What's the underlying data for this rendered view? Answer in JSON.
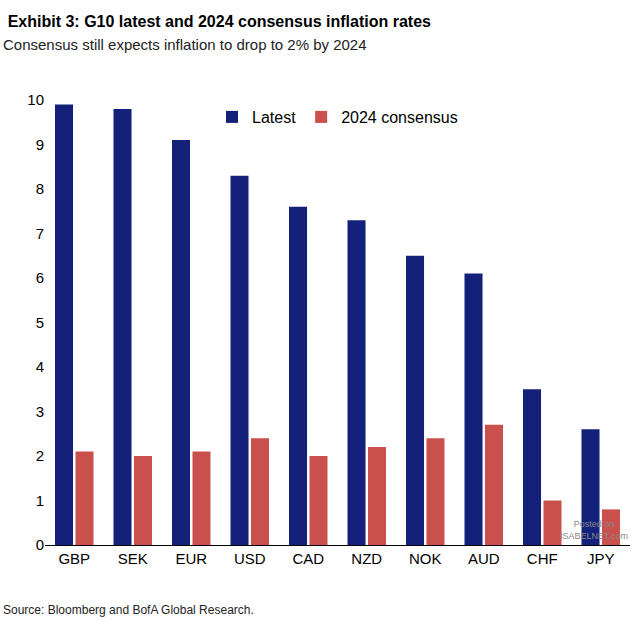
{
  "chart_data": {
    "type": "bar",
    "title": "Exhibit 3: G10 latest and 2024 consensus inflation rates",
    "subtitle": "Consensus still expects inflation to drop to 2% by 2024",
    "source": "Source: Bloomberg and BofA Global Research.",
    "annotations": [
      "Posted on",
      "ISABELNET.com"
    ],
    "categories": [
      "GBP",
      "SEK",
      "EUR",
      "USD",
      "CAD",
      "NZD",
      "NOK",
      "AUD",
      "CHF",
      "JPY"
    ],
    "series": [
      {
        "name": "Latest",
        "color": "#14217a",
        "values": [
          9.9,
          9.8,
          9.1,
          8.3,
          7.6,
          7.3,
          6.5,
          6.1,
          3.5,
          2.6
        ]
      },
      {
        "name": "2024 consensus",
        "color": "#c9504c",
        "values": [
          2.1,
          2.0,
          2.1,
          2.4,
          2.0,
          2.2,
          2.4,
          2.7,
          1.0,
          0.8
        ]
      }
    ],
    "ylim": [
      0,
      10
    ],
    "yticks": [
      0,
      1,
      2,
      3,
      4,
      5,
      6,
      7,
      8,
      9,
      10
    ],
    "grid": false,
    "legend": "top"
  }
}
